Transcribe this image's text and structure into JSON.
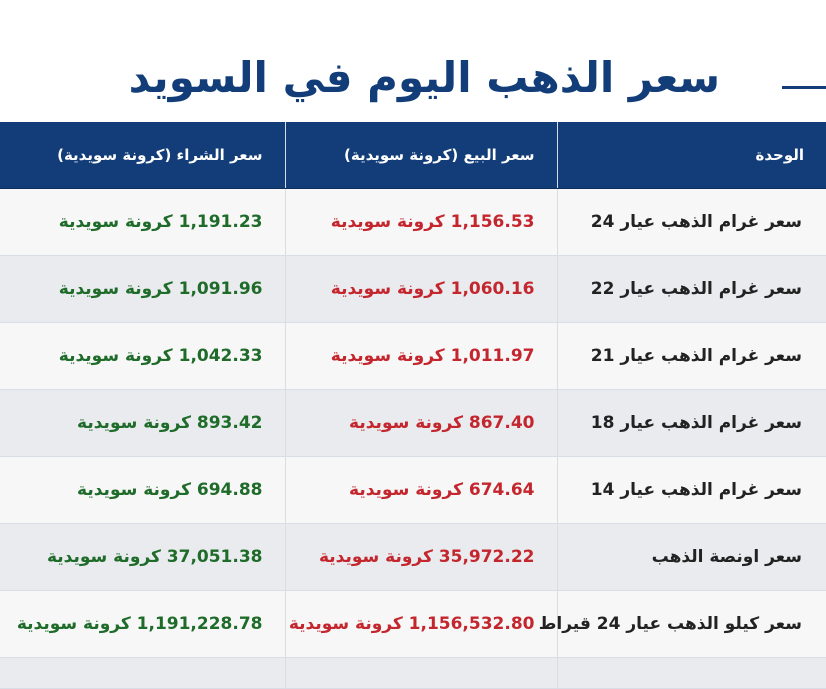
{
  "page": {
    "title": "سعر الذهب اليوم في السويد"
  },
  "table": {
    "headers": {
      "unit": "الوحدة",
      "sell": "سعر البيع (كرونة سويدية)",
      "buy": "سعر الشراء (كرونة سويدية)"
    },
    "rows": [
      {
        "unit": "سعر غرام الذهب عيار 24",
        "sell": "1,156.53 كرونة سويدية",
        "buy": "1,191.23 كرونة سويدية"
      },
      {
        "unit": "سعر غرام الذهب عيار 22",
        "sell": "1,060.16 كرونة سويدية",
        "buy": "1,091.96 كرونة سويدية"
      },
      {
        "unit": "سعر غرام الذهب عيار 21",
        "sell": "1,011.97 كرونة سويدية",
        "buy": "1,042.33 كرونة سويدية"
      },
      {
        "unit": "سعر غرام الذهب عيار 18",
        "sell": "867.40 كرونة سويدية",
        "buy": "893.42 كرونة سويدية"
      },
      {
        "unit": "سعر غرام الذهب عيار 14",
        "sell": "674.64 كرونة سويدية",
        "buy": "694.88 كرونة سويدية"
      },
      {
        "unit": "سعر اونصة الذهب",
        "sell": "35,972.22 كرونة سويدية",
        "buy": "37,051.38 كرونة سويدية"
      },
      {
        "unit": "سعر كيلو الذهب عيار 24 قيراط",
        "sell": "1,156,532.80 كرونة سويدية",
        "buy": "1,191,228.78 كرونة سويدية"
      }
    ]
  },
  "colors": {
    "header_bg": "#123d78",
    "title": "#123d78",
    "sell_price": "#c4262e",
    "buy_price": "#1f6b2a",
    "row_light": "#f7f7f7",
    "row_dark": "#e9ebee"
  }
}
